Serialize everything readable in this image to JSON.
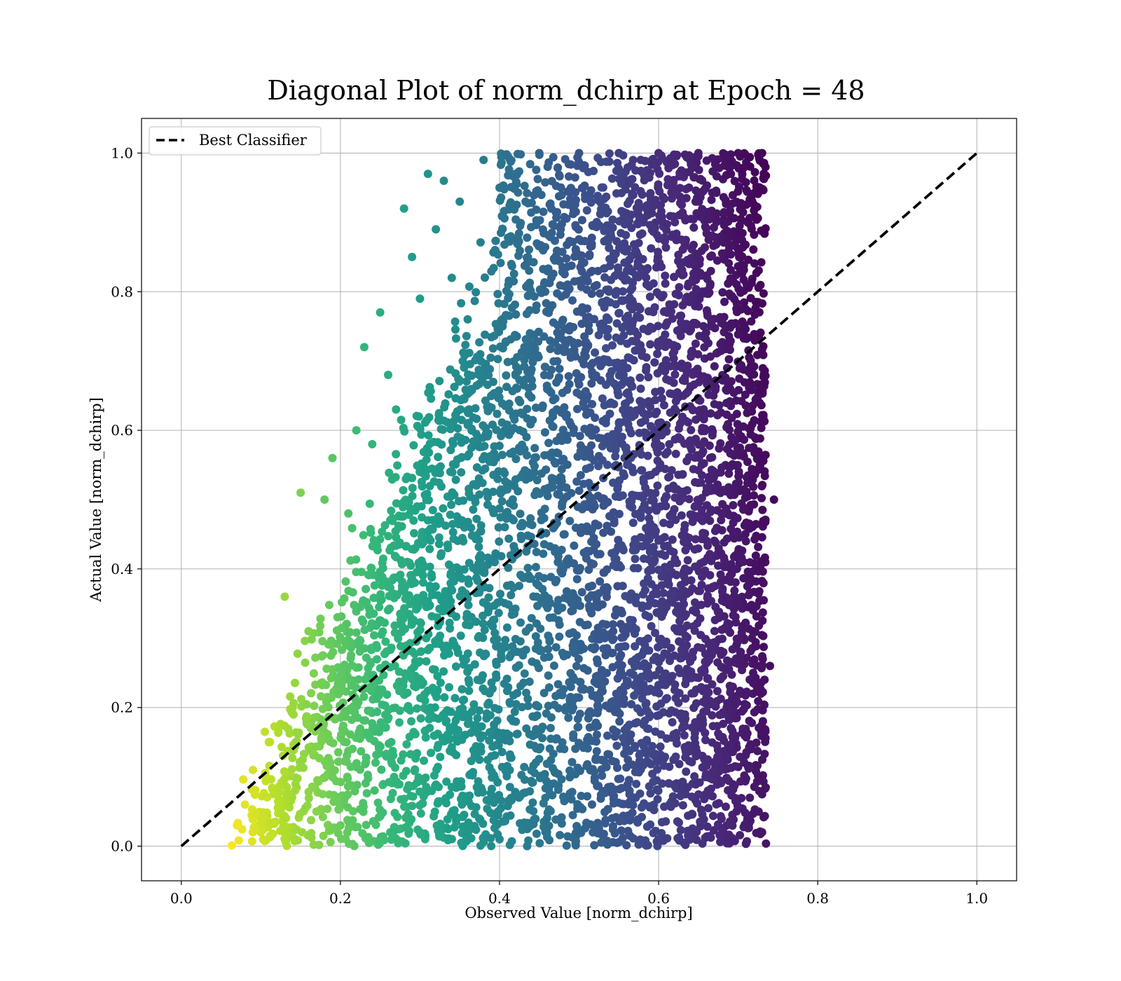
{
  "chart_data": {
    "type": "scatter",
    "title": "Diagonal Plot of norm_dchirp at Epoch = 48",
    "xlabel": "Observed Value [norm_dchirp]",
    "ylabel": "Actual Value [norm_dchirp]",
    "xlim": [
      -0.05,
      1.05
    ],
    "ylim": [
      -0.05,
      1.05
    ],
    "xticks": [
      0.0,
      0.2,
      0.4,
      0.6,
      0.8,
      1.0
    ],
    "yticks": [
      0.0,
      0.2,
      0.4,
      0.6,
      0.8,
      1.0
    ],
    "xtick_labels": [
      "0.0",
      "0.2",
      "0.4",
      "0.6",
      "0.8",
      "1.0"
    ],
    "ytick_labels": [
      "0.0",
      "0.2",
      "0.4",
      "0.6",
      "0.8",
      "1.0"
    ],
    "grid": true,
    "legend": {
      "placement": "top-left",
      "entries": [
        {
          "label": "Best Classifier",
          "style": "dashed",
          "color": "#000000"
        }
      ]
    },
    "reference_line": {
      "name": "Best Classifier",
      "x": [
        0.0,
        1.0
      ],
      "y": [
        0.0,
        1.0
      ],
      "style": "dashed",
      "color": "#000000"
    },
    "colormap": "viridis",
    "point_color": "viridis colormap, yellow at low observed values to dark purple at high observed values",
    "point_sample": [
      [
        0.07,
        0.03
      ],
      [
        0.08,
        0.06
      ],
      [
        0.09,
        0.11
      ],
      [
        0.1,
        0.02
      ],
      [
        0.11,
        0.15
      ],
      [
        0.12,
        0.08
      ],
      [
        0.13,
        0.36
      ],
      [
        0.14,
        0.2
      ],
      [
        0.15,
        0.51
      ],
      [
        0.16,
        0.31
      ],
      [
        0.17,
        0.05
      ],
      [
        0.18,
        0.5
      ],
      [
        0.19,
        0.56
      ],
      [
        0.2,
        0.23
      ],
      [
        0.21,
        0.48
      ],
      [
        0.22,
        0.6
      ],
      [
        0.23,
        0.72
      ],
      [
        0.24,
        0.58
      ],
      [
        0.25,
        0.77
      ],
      [
        0.26,
        0.68
      ],
      [
        0.27,
        0.63
      ],
      [
        0.28,
        0.92
      ],
      [
        0.29,
        0.85
      ],
      [
        0.3,
        0.79
      ],
      [
        0.31,
        0.97
      ],
      [
        0.32,
        0.89
      ],
      [
        0.33,
        0.96
      ],
      [
        0.34,
        0.82
      ],
      [
        0.35,
        0.93
      ],
      [
        0.36,
        0.76
      ],
      [
        0.38,
        0.99
      ],
      [
        0.4,
        0.95
      ],
      [
        0.42,
        0.97
      ],
      [
        0.45,
        1.0
      ],
      [
        0.5,
        1.0
      ],
      [
        0.55,
        1.0
      ],
      [
        0.6,
        1.0
      ],
      [
        0.65,
        1.0
      ],
      [
        0.7,
        1.0
      ],
      [
        0.73,
        1.0
      ],
      [
        0.745,
        0.5
      ],
      [
        0.74,
        0.26
      ],
      [
        0.73,
        0.02
      ],
      [
        0.6,
        0.01
      ],
      [
        0.5,
        0.02
      ],
      [
        0.4,
        0.01
      ],
      [
        0.3,
        0.02
      ],
      [
        0.2,
        0.03
      ]
    ],
    "observed_range": [
      0.06,
      0.75
    ],
    "actual_range": [
      0.0,
      1.0
    ]
  }
}
